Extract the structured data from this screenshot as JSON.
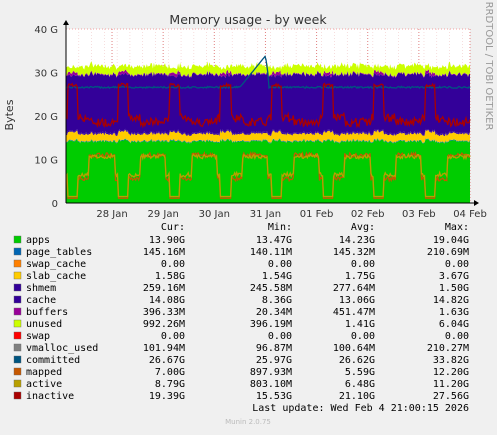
{
  "chart_data": {
    "type": "area",
    "title": "Memory usage - by week",
    "ylabel": "Bytes",
    "side_label": "RRDTOOL / TOBI OETIKER",
    "y_ticks": [
      "0",
      "10 G",
      "20 G",
      "30 G",
      "40 G"
    ],
    "ylim": [
      0,
      40
    ],
    "y_unit": "G (bytes)",
    "x_ticks": [
      "28 Jan",
      "29 Jan",
      "30 Jan",
      "31 Jan",
      "01 Feb",
      "02 Feb",
      "03 Feb",
      "04 Feb"
    ],
    "x_range_days": 7.9,
    "grid": true,
    "stack_profile": {
      "apps": {
        "day": 14.0,
        "night": 14.4,
        "min": 13.47,
        "max": 19.04
      },
      "page_tables": 0.145,
      "swap_cache": 0.0,
      "slab_cache": {
        "day": 1.6,
        "night": 1.9
      },
      "shmem": 0.26,
      "cache": {
        "day": 13.4,
        "night": 12.7,
        "min": 8.36,
        "max": 14.82
      },
      "buffers": {
        "day": 0.1,
        "night": 0.65
      },
      "unused": {
        "day": 1.9,
        "night": 1.2,
        "min": 0.39,
        "max": 6.04
      },
      "committed": {
        "base": 26.6,
        "spike": 33.82
      },
      "mapped": {
        "base": 5.6,
        "high": 11.5
      },
      "active": {
        "base": 6.5,
        "high": 11.2
      },
      "inactive": {
        "base": 21.1,
        "high": 27.5
      }
    },
    "legend_header": {
      "cur": "Cur:",
      "min": "Min:",
      "avg": "Avg:",
      "max": "Max:"
    },
    "series": [
      {
        "name": "apps",
        "color": "#00cc00",
        "cur": "13.90G",
        "min": "13.47G",
        "avg": "14.23G",
        "max": "19.04G"
      },
      {
        "name": "page_tables",
        "color": "#0066b3",
        "cur": "145.16M",
        "min": "140.11M",
        "avg": "145.32M",
        "max": "210.69M"
      },
      {
        "name": "swap_cache",
        "color": "#ff8000",
        "cur": "0.00",
        "min": "0.00",
        "avg": "0.00",
        "max": "0.00"
      },
      {
        "name": "slab_cache",
        "color": "#ffcc00",
        "cur": "1.58G",
        "min": "1.54G",
        "avg": "1.75G",
        "max": "3.67G"
      },
      {
        "name": "shmem",
        "color": "#330099",
        "cur": "259.16M",
        "min": "245.58M",
        "avg": "277.64M",
        "max": "1.50G"
      },
      {
        "name": "cache",
        "color": "#330099",
        "cur": "14.08G",
        "min": "8.36G",
        "avg": "13.06G",
        "max": "14.82G"
      },
      {
        "name": "buffers",
        "color": "#990099",
        "cur": "396.33M",
        "min": "20.34M",
        "avg": "451.47M",
        "max": "1.63G"
      },
      {
        "name": "unused",
        "color": "#ccff00",
        "cur": "992.26M",
        "min": "396.19M",
        "avg": "1.41G",
        "max": "6.04G"
      },
      {
        "name": "swap",
        "color": "#ff0000",
        "cur": "0.00",
        "min": "0.00",
        "avg": "0.00",
        "max": "0.00"
      },
      {
        "name": "vmalloc_used",
        "color": "#808080",
        "cur": "101.94M",
        "min": "96.87M",
        "avg": "100.64M",
        "max": "210.27M"
      },
      {
        "name": "committed",
        "color": "#005580",
        "cur": "26.67G",
        "min": "25.97G",
        "avg": "26.62G",
        "max": "33.82G"
      },
      {
        "name": "mapped",
        "color": "#c65800",
        "cur": "7.00G",
        "min": "897.93M",
        "avg": "5.59G",
        "max": "12.20G"
      },
      {
        "name": "active",
        "color": "#b8a000",
        "cur": "8.79G",
        "min": "803.10M",
        "avg": "6.48G",
        "max": "11.20G"
      },
      {
        "name": "inactive",
        "color": "#aa0000",
        "cur": "19.39G",
        "min": "15.53G",
        "avg": "21.10G",
        "max": "27.56G"
      }
    ],
    "last_update": "Last update: Wed Feb  4 21:00:15 2026",
    "footer": "Munin 2.0.75"
  }
}
